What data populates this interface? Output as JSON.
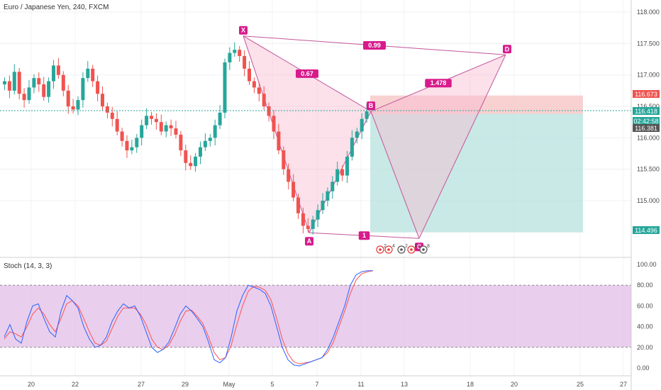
{
  "header": {
    "title": "Euro / Japanese Yen, 240, FXCM",
    "stoch_label": "Stoch (14, 3, 3)"
  },
  "colors": {
    "up": "#26a69a",
    "down": "#ef5350",
    "pattern_fill": "#f8bbd0",
    "pattern_line": "#c2569a",
    "point_label": "#d81b8c",
    "stop_zone": "#f6c6c6",
    "target_zone": "#b2dfdb",
    "stoch_band": "#e1bee7",
    "stoch_k": "#2962ff",
    "stoch_d": "#ff5252"
  },
  "price_axis": {
    "ticks": [
      "118.000",
      "117.500",
      "117.000",
      "116.500",
      "116.000",
      "115.500",
      "115.000"
    ],
    "badges": [
      {
        "label": "116.673",
        "bg": "#ef5350"
      },
      {
        "label": "116.418",
        "bg": "#26a69a"
      },
      {
        "label": "02:42:58",
        "bg": "#26a69a"
      },
      {
        "label": "116.381",
        "bg": "#555555"
      },
      {
        "label": "114.496",
        "bg": "#26a69a"
      }
    ]
  },
  "stoch_axis": {
    "ticks": [
      "100.00",
      "80.00",
      "60.00",
      "40.00",
      "20.00",
      "0.00"
    ]
  },
  "time_axis": {
    "ticks": [
      "20",
      "22",
      "27",
      "29",
      "May",
      "5",
      "7",
      "11",
      "13",
      "18",
      "20",
      "25",
      "27"
    ]
  },
  "pattern": {
    "points": [
      {
        "name": "X",
        "price": 117.62
      },
      {
        "name": "A",
        "price": 114.49
      },
      {
        "name": "B",
        "price": 116.42
      },
      {
        "name": "C",
        "price": 114.4
      },
      {
        "name": "D",
        "price": 117.32
      }
    ],
    "ratios": [
      {
        "name": "XB",
        "value": "0.67"
      },
      {
        "name": "XD",
        "value": "0.99"
      },
      {
        "name": "BD",
        "value": "1.478"
      },
      {
        "name": "AC",
        "value": "1"
      }
    ]
  },
  "event_icons": [
    {
      "type": "dividend",
      "count": "2"
    },
    {
      "type": "earnings",
      "count": "4"
    },
    {
      "type": "split",
      "count": "2"
    },
    {
      "type": "earnings",
      "count": "8"
    },
    {
      "type": "split",
      "count": "8"
    }
  ],
  "chart_data": {
    "type": "candlestick",
    "title": "Euro / Japanese Yen, 240, FXCM",
    "ylim": [
      114.3,
      118.2
    ],
    "close_series": [
      116.9,
      116.75,
      117.05,
      116.7,
      116.6,
      116.8,
      116.95,
      116.85,
      116.65,
      116.9,
      117.15,
      117.0,
      116.75,
      116.5,
      116.45,
      116.6,
      116.95,
      117.1,
      116.9,
      116.7,
      116.5,
      116.4,
      116.3,
      116.1,
      115.95,
      115.8,
      115.85,
      116.0,
      116.2,
      116.35,
      116.3,
      116.25,
      116.1,
      116.2,
      116.15,
      116.05,
      115.8,
      115.6,
      115.55,
      115.7,
      115.85,
      115.95,
      116.0,
      116.2,
      116.4,
      117.2,
      117.35,
      117.4,
      117.3,
      117.1,
      116.9,
      116.8,
      116.7,
      116.5,
      116.35,
      116.1,
      115.8,
      115.5,
      115.3,
      115.05,
      114.8,
      114.6,
      114.55,
      114.7,
      114.85,
      115.0,
      115.15,
      115.3,
      115.5,
      115.4,
      115.7,
      116.0,
      116.1,
      116.3,
      116.42
    ],
    "stoch_k": [
      30,
      42,
      28,
      24,
      45,
      60,
      62,
      48,
      35,
      30,
      55,
      70,
      65,
      58,
      40,
      28,
      20,
      22,
      30,
      45,
      55,
      62,
      58,
      60,
      50,
      35,
      20,
      15,
      18,
      25,
      38,
      52,
      60,
      55,
      48,
      40,
      25,
      8,
      5,
      10,
      30,
      55,
      70,
      80,
      78,
      76,
      72,
      60,
      40,
      20,
      8,
      3,
      2,
      4,
      6,
      8,
      10,
      18,
      30,
      45,
      60,
      80,
      90,
      93,
      94,
      94
    ],
    "stoch_d": [
      28,
      35,
      33,
      30,
      40,
      52,
      58,
      52,
      42,
      35,
      48,
      62,
      65,
      60,
      48,
      35,
      24,
      22,
      26,
      38,
      50,
      58,
      58,
      58,
      52,
      42,
      28,
      20,
      18,
      22,
      32,
      45,
      55,
      56,
      50,
      43,
      30,
      15,
      8,
      10,
      22,
      42,
      60,
      74,
      79,
      78,
      75,
      66,
      48,
      28,
      14,
      6,
      4,
      5,
      6,
      8,
      10,
      15,
      25,
      40,
      55,
      72,
      85,
      91,
      93,
      94
    ],
    "stoch_levels": [
      80,
      20
    ]
  }
}
